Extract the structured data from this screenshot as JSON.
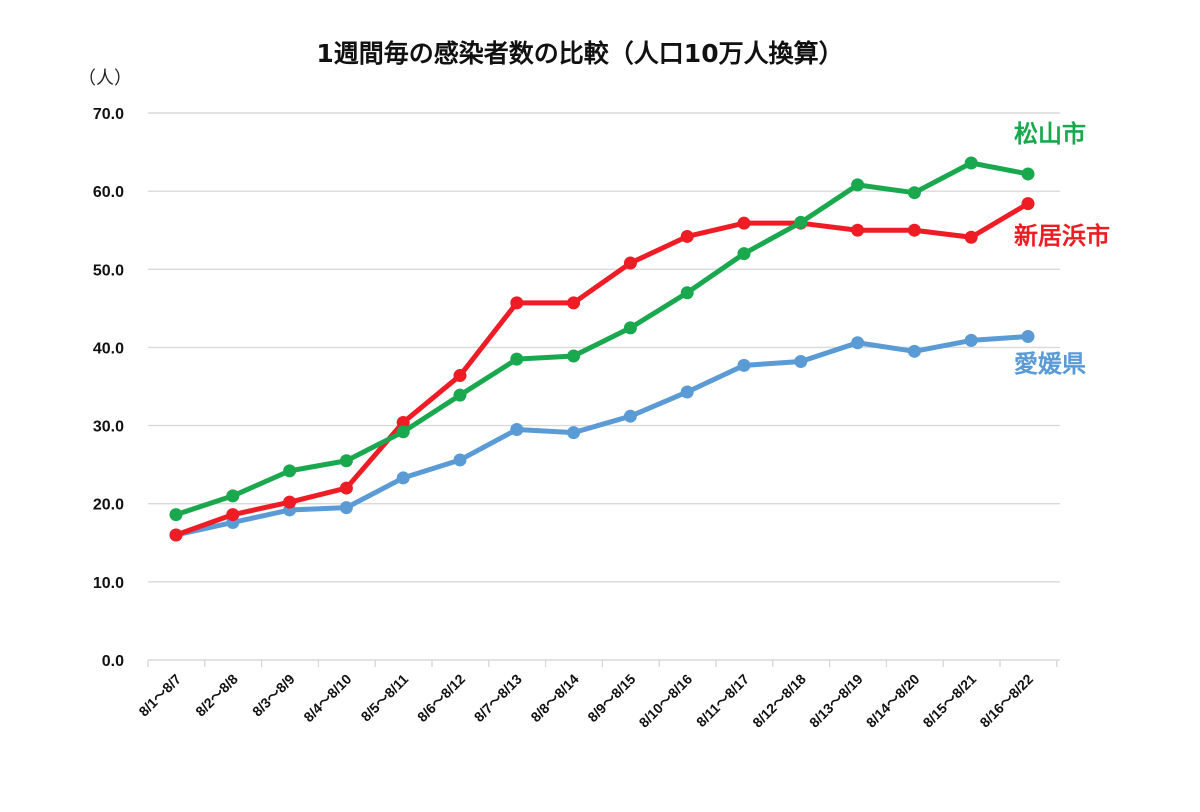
{
  "chart_data": {
    "type": "line",
    "title": "1週間毎の感染者数の比較（人口10万人換算）",
    "ylabel": "（人）",
    "ylim": [
      0,
      70
    ],
    "yticks": [
      "0.0",
      "10.0",
      "20.0",
      "30.0",
      "40.0",
      "50.0",
      "60.0",
      "70.0"
    ],
    "grid": true,
    "legend": "direct labels at right end of lines",
    "categories": [
      "8/1～8/7",
      "8/2～8/8",
      "8/3～8/9",
      "8/4～8/10",
      "8/5～8/11",
      "8/6～8/12",
      "8/7～8/13",
      "8/8～8/14",
      "8/9～8/15",
      "8/10～8/16",
      "8/11～8/17",
      "8/12～8/18",
      "8/13～8/19",
      "8/14～8/20",
      "8/15～8/21",
      "8/16～8/22"
    ],
    "series": [
      {
        "name": "愛媛県",
        "color": "#5b9bd5",
        "values": [
          16.0,
          17.6,
          19.2,
          19.5,
          23.3,
          25.6,
          29.5,
          29.1,
          31.2,
          34.3,
          37.7,
          38.2,
          40.6,
          39.5,
          40.9,
          41.4
        ]
      },
      {
        "name": "新居浜市",
        "color": "#ee1c25",
        "values": [
          16.0,
          18.6,
          20.2,
          22.0,
          30.4,
          36.4,
          45.7,
          45.7,
          50.8,
          54.2,
          55.9,
          55.9,
          55.0,
          55.0,
          54.1,
          58.4
        ]
      },
      {
        "name": "松山市",
        "color": "#1aa84f",
        "values": [
          18.6,
          21.0,
          24.2,
          25.5,
          29.2,
          33.9,
          38.5,
          38.9,
          42.5,
          47.0,
          52.0,
          56.0,
          60.8,
          59.8,
          63.6,
          62.2
        ]
      }
    ]
  }
}
